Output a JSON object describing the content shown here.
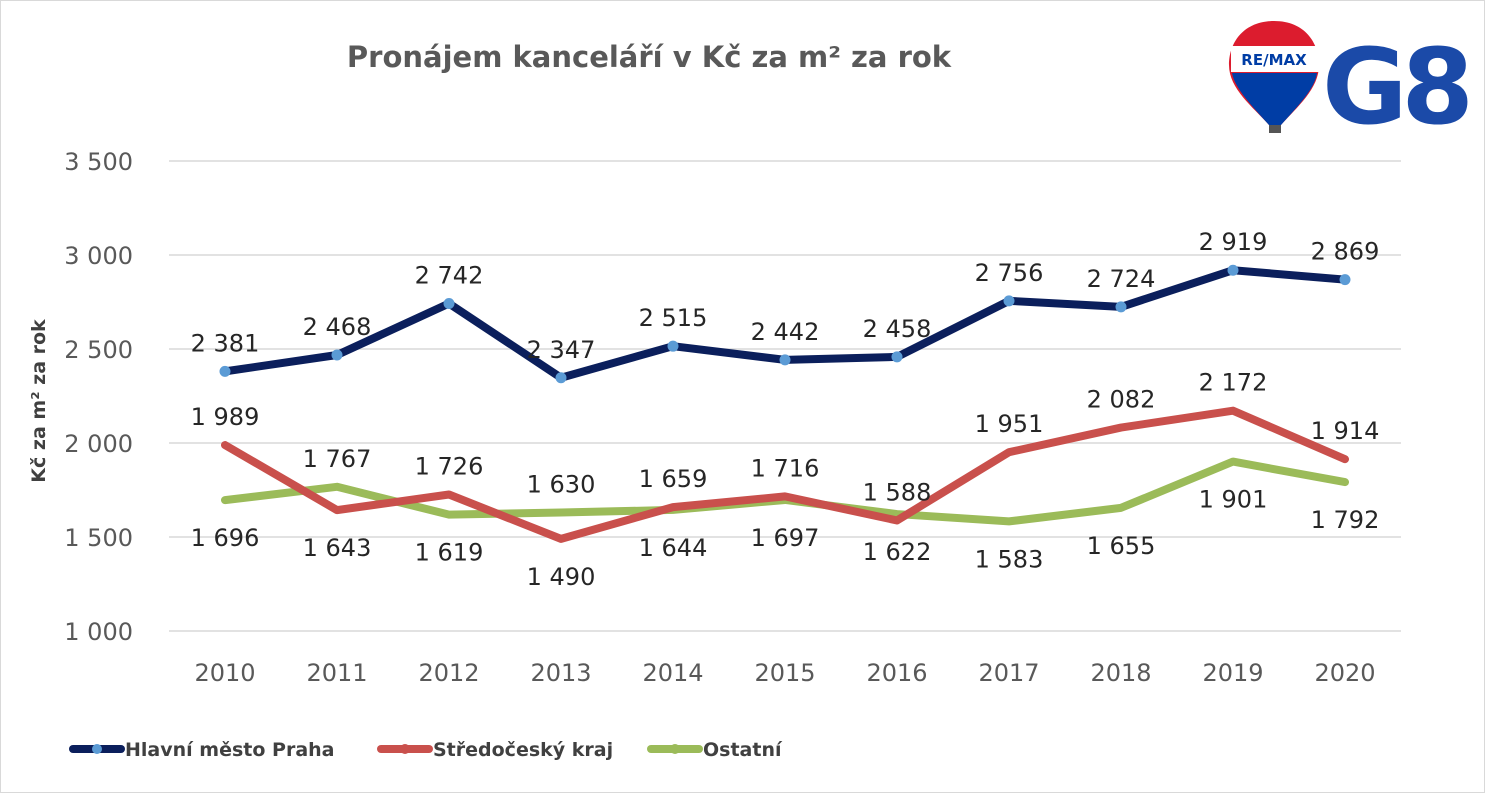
{
  "colors": {
    "background": "#ffffff",
    "grid": "#d9d9d9",
    "text": "#595959",
    "praha": "#0b1f5c",
    "praha_marker": "#5b9bd5",
    "stredocesky": "#c9504c",
    "ostatni": "#9bbb59",
    "remax_red": "#dc1c2e",
    "remax_blue": "#003da5",
    "g8_blue": "#1b4aa8"
  },
  "logo": {
    "remax_text": "RE/MAX",
    "g8_text": "G8"
  },
  "chart_data": {
    "type": "line",
    "title": "Pronájem kanceláří v Kč za m² za rok",
    "ylabel": "Kč za m² za rok",
    "xlabel": "",
    "categories": [
      "2010",
      "2011",
      "2012",
      "2013",
      "2014",
      "2015",
      "2016",
      "2017",
      "2018",
      "2019",
      "2020"
    ],
    "ylim": [
      1000,
      3500
    ],
    "yticks": [
      1000,
      1500,
      2000,
      2500,
      3000,
      3500
    ],
    "ytick_labels": [
      "1 000",
      "1 500",
      "2 000",
      "2 500",
      "3 000",
      "3 500"
    ],
    "grid": "horizontal",
    "legend_position": "bottom-left",
    "series": [
      {
        "name": "Hlavní město Praha",
        "color": "#0b1f5c",
        "marker": true,
        "values": [
          2381,
          2468,
          2742,
          2347,
          2515,
          2442,
          2458,
          2756,
          2724,
          2919,
          2869
        ],
        "labels": [
          "2 381",
          "2 468",
          "2 742",
          "2 347",
          "2 515",
          "2 442",
          "2 458",
          "2 756",
          "2 724",
          "2 919",
          "2 869"
        ],
        "label_position": "above"
      },
      {
        "name": "Středočeský kraj",
        "color": "#c9504c",
        "marker": false,
        "values": [
          1989,
          1643,
          1726,
          1490,
          1659,
          1716,
          1588,
          1951,
          2082,
          2172,
          1914
        ],
        "labels": [
          "1 989",
          "1 643",
          "1 726",
          "1 490",
          "1 659",
          "1 716",
          "1 588",
          "1 951",
          "2 082",
          "2 172",
          "1 914"
        ],
        "label_position": [
          "above",
          "below",
          "above",
          "below",
          "above",
          "above",
          "above",
          "above",
          "above",
          "above",
          "above"
        ]
      },
      {
        "name": "Ostatní",
        "color": "#9bbb59",
        "marker": false,
        "values": [
          1696,
          1767,
          1619,
          1630,
          1644,
          1697,
          1622,
          1583,
          1655,
          1901,
          1792
        ],
        "labels": [
          "1 696",
          "1 767",
          "1 619",
          "1 630",
          "1 644",
          "1 697",
          "1 622",
          "1 583",
          "1 655",
          "1 901",
          "1 792"
        ],
        "label_position": [
          "below",
          "above",
          "below",
          "above",
          "below",
          "below",
          "below",
          "below",
          "below",
          "below",
          "below"
        ]
      }
    ]
  }
}
